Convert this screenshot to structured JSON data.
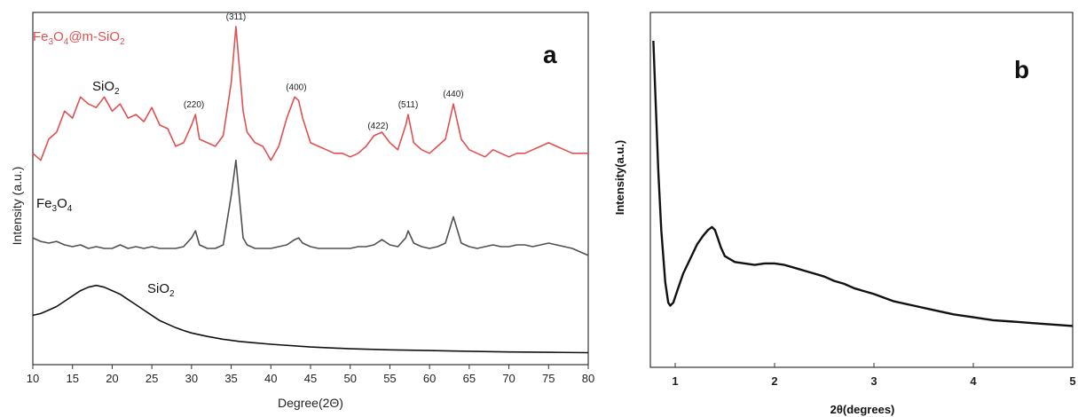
{
  "chart_data": [
    {
      "panel": "a",
      "type": "line",
      "xlabel": "Degree(2Θ)",
      "ylabel": "Intensity (a.u.)",
      "xlim": [
        10,
        80
      ],
      "xticks": [
        "10",
        "15",
        "20",
        "25",
        "30",
        "35",
        "40",
        "45",
        "50",
        "55",
        "60",
        "65",
        "70",
        "75",
        "80"
      ],
      "series": [
        {
          "name": "Fe3O4@m-SiO2",
          "color": "#e05050",
          "x": [
            10,
            11,
            12,
            13,
            14,
            15,
            16,
            17,
            18,
            19,
            20,
            21,
            22,
            23,
            24,
            25,
            26,
            27,
            28,
            29,
            30,
            30.5,
            31,
            32,
            33,
            34,
            35,
            35.6,
            36.5,
            37,
            38,
            39,
            40,
            41,
            42,
            43,
            43.5,
            44,
            45,
            46,
            47,
            48,
            49,
            50,
            51,
            52,
            53,
            54,
            55,
            56,
            57,
            57.3,
            58,
            59,
            60,
            61,
            62,
            63,
            64,
            65,
            66,
            67,
            68,
            69,
            70,
            71,
            72,
            73,
            74,
            75,
            76,
            77,
            78,
            79,
            80
          ],
          "y": [
            0.6,
            0.58,
            0.64,
            0.66,
            0.72,
            0.7,
            0.76,
            0.74,
            0.73,
            0.76,
            0.72,
            0.74,
            0.7,
            0.71,
            0.69,
            0.73,
            0.68,
            0.67,
            0.62,
            0.63,
            0.68,
            0.71,
            0.64,
            0.63,
            0.62,
            0.65,
            0.8,
            0.96,
            0.72,
            0.66,
            0.63,
            0.62,
            0.58,
            0.62,
            0.7,
            0.76,
            0.75,
            0.7,
            0.63,
            0.62,
            0.61,
            0.6,
            0.6,
            0.59,
            0.6,
            0.62,
            0.65,
            0.66,
            0.63,
            0.61,
            0.68,
            0.71,
            0.63,
            0.61,
            0.6,
            0.62,
            0.64,
            0.74,
            0.64,
            0.61,
            0.6,
            0.59,
            0.61,
            0.6,
            0.59,
            0.6,
            0.6,
            0.61,
            0.62,
            0.63,
            0.62,
            0.61,
            0.6,
            0.6,
            0.6
          ]
        },
        {
          "name": "Fe3O4",
          "color": "#505050",
          "x": [
            10,
            11,
            12,
            13,
            14,
            15,
            16,
            17,
            18,
            19,
            20,
            21,
            22,
            23,
            24,
            25,
            26,
            27,
            28,
            29,
            30,
            30.5,
            31,
            32,
            33,
            34,
            35,
            35.6,
            36.5,
            37,
            38,
            39,
            40,
            41,
            42,
            43,
            43.5,
            44,
            45,
            46,
            47,
            48,
            49,
            50,
            51,
            52,
            53,
            54,
            55,
            56,
            57,
            57.3,
            58,
            59,
            60,
            61,
            62,
            63,
            64,
            65,
            66,
            67,
            68,
            69,
            70,
            71,
            72,
            73,
            74,
            75,
            76,
            77,
            78,
            79,
            80
          ],
          "y": [
            0.36,
            0.35,
            0.345,
            0.35,
            0.34,
            0.335,
            0.34,
            0.33,
            0.335,
            0.33,
            0.33,
            0.34,
            0.33,
            0.335,
            0.33,
            0.335,
            0.33,
            0.33,
            0.33,
            0.335,
            0.36,
            0.38,
            0.34,
            0.33,
            0.33,
            0.34,
            0.48,
            0.58,
            0.36,
            0.34,
            0.33,
            0.33,
            0.33,
            0.335,
            0.34,
            0.355,
            0.36,
            0.345,
            0.335,
            0.33,
            0.33,
            0.33,
            0.33,
            0.33,
            0.335,
            0.335,
            0.34,
            0.355,
            0.34,
            0.335,
            0.36,
            0.38,
            0.345,
            0.335,
            0.33,
            0.335,
            0.345,
            0.42,
            0.345,
            0.335,
            0.33,
            0.335,
            0.34,
            0.335,
            0.335,
            0.34,
            0.34,
            0.335,
            0.34,
            0.345,
            0.34,
            0.335,
            0.33,
            0.32,
            0.31
          ]
        },
        {
          "name": "SiO2",
          "color": "#111111",
          "x": [
            10,
            11,
            12,
            13,
            14,
            15,
            16,
            17,
            18,
            19,
            20,
            21,
            22,
            23,
            24,
            25,
            26,
            27,
            28,
            29,
            30,
            32,
            34,
            36,
            38,
            40,
            45,
            50,
            55,
            60,
            65,
            70,
            75,
            80
          ],
          "y": [
            0.14,
            0.145,
            0.155,
            0.165,
            0.18,
            0.195,
            0.21,
            0.22,
            0.225,
            0.22,
            0.21,
            0.2,
            0.185,
            0.17,
            0.155,
            0.14,
            0.125,
            0.115,
            0.105,
            0.097,
            0.09,
            0.08,
            0.072,
            0.066,
            0.062,
            0.058,
            0.05,
            0.045,
            0.042,
            0.04,
            0.038,
            0.036,
            0.035,
            0.034
          ]
        }
      ],
      "series_labels": {
        "fe3o4_msio2": {
          "main": "Fe",
          "sub1": "3",
          "mid": "O",
          "sub2": "4",
          "tail": "@m-SiO",
          "sub3": "2"
        },
        "sio2_top": {
          "main": "SiO",
          "sub": "2"
        },
        "fe3o4": {
          "main": "Fe",
          "sub1": "3",
          "mid": "O",
          "sub2": "4"
        },
        "sio2_bottom": {
          "main": "SiO",
          "sub": "2"
        }
      },
      "annotations": [
        {
          "text": "(220)",
          "x": 30.3
        },
        {
          "text": "(311)",
          "x": 35.6
        },
        {
          "text": "(400)",
          "x": 43.2
        },
        {
          "text": "(422)",
          "x": 53.5
        },
        {
          "text": "(511)",
          "x": 57.3
        },
        {
          "text": "(440)",
          "x": 63.0
        }
      ]
    },
    {
      "panel": "b",
      "type": "line",
      "xlabel": "2θ(degrees)",
      "ylabel": "Intensity(a.u.)",
      "xlim": [
        0.75,
        5.0
      ],
      "xticks": [
        "1",
        "2",
        "3",
        "4",
        "5"
      ],
      "series": [
        {
          "name": "",
          "color": "#111111",
          "x": [
            0.78,
            0.8,
            0.83,
            0.86,
            0.9,
            0.93,
            0.95,
            0.98,
            1.02,
            1.08,
            1.15,
            1.22,
            1.28,
            1.33,
            1.37,
            1.4,
            1.43,
            1.46,
            1.5,
            1.55,
            1.6,
            1.7,
            1.8,
            1.9,
            2.0,
            2.1,
            2.2,
            2.3,
            2.4,
            2.5,
            2.6,
            2.7,
            2.8,
            2.9,
            3.0,
            3.2,
            3.4,
            3.6,
            3.8,
            4.0,
            4.2,
            4.4,
            4.6,
            4.8,
            5.0
          ],
          "y": [
            1.0,
            0.82,
            0.55,
            0.35,
            0.17,
            0.1,
            0.09,
            0.1,
            0.14,
            0.2,
            0.25,
            0.3,
            0.33,
            0.35,
            0.36,
            0.35,
            0.32,
            0.29,
            0.26,
            0.25,
            0.24,
            0.235,
            0.23,
            0.235,
            0.235,
            0.23,
            0.22,
            0.21,
            0.2,
            0.19,
            0.175,
            0.165,
            0.15,
            0.14,
            0.13,
            0.105,
            0.09,
            0.075,
            0.06,
            0.05,
            0.04,
            0.035,
            0.03,
            0.025,
            0.02
          ]
        }
      ]
    }
  ],
  "panel_letters": {
    "a": "a",
    "b": "b"
  }
}
